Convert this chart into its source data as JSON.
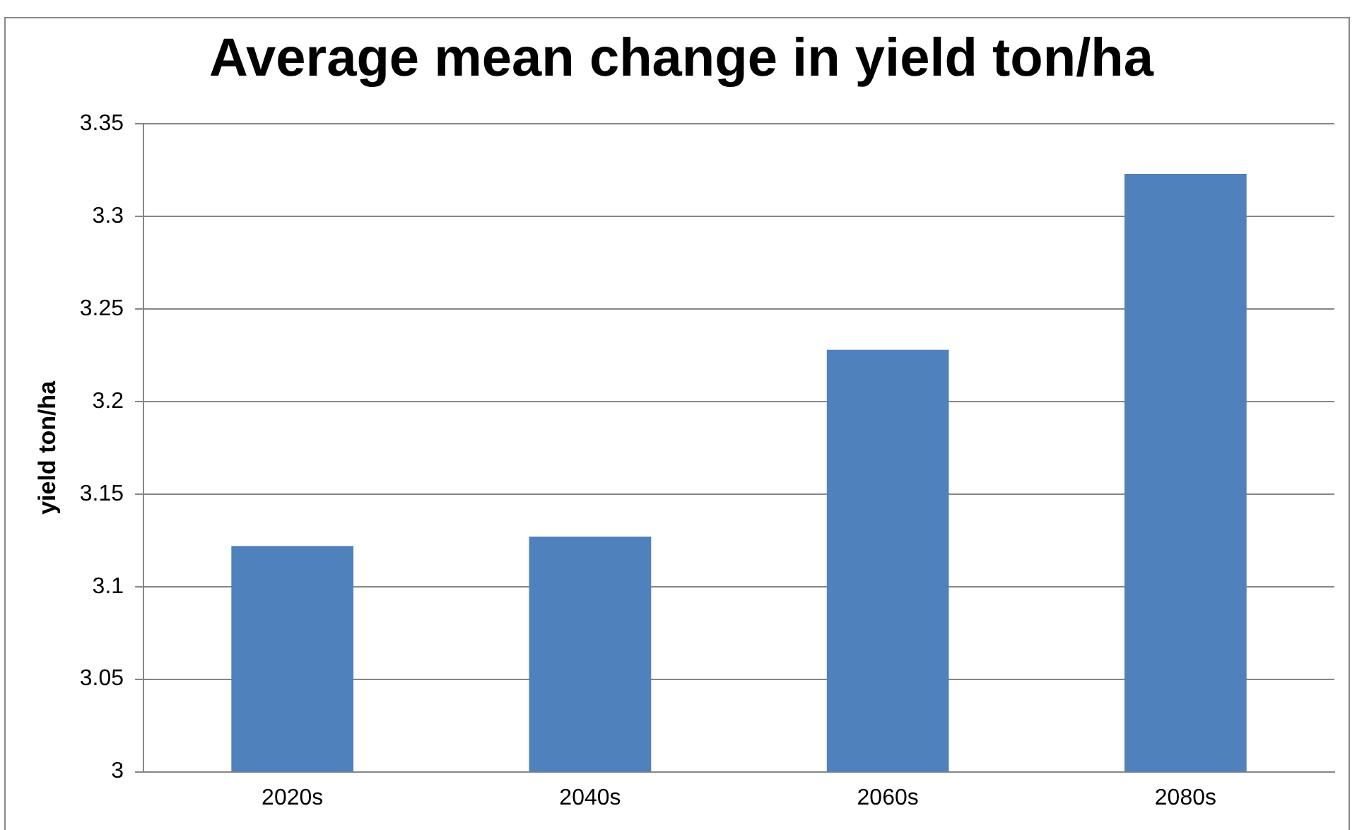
{
  "chart_data": {
    "type": "bar",
    "title": "Average mean change in yield ton/ha",
    "ylabel": "yield ton/ha",
    "categories": [
      "2020s",
      "2040s",
      "2060s",
      "2080s"
    ],
    "values": [
      3.122,
      3.127,
      3.228,
      3.323
    ],
    "color": "#4f81bd",
    "ylim": [
      3,
      3.35
    ],
    "yticks": [
      3,
      3.05,
      3.1,
      3.15,
      3.2,
      3.25,
      3.3,
      3.35
    ],
    "grid": "y",
    "legend": false
  }
}
